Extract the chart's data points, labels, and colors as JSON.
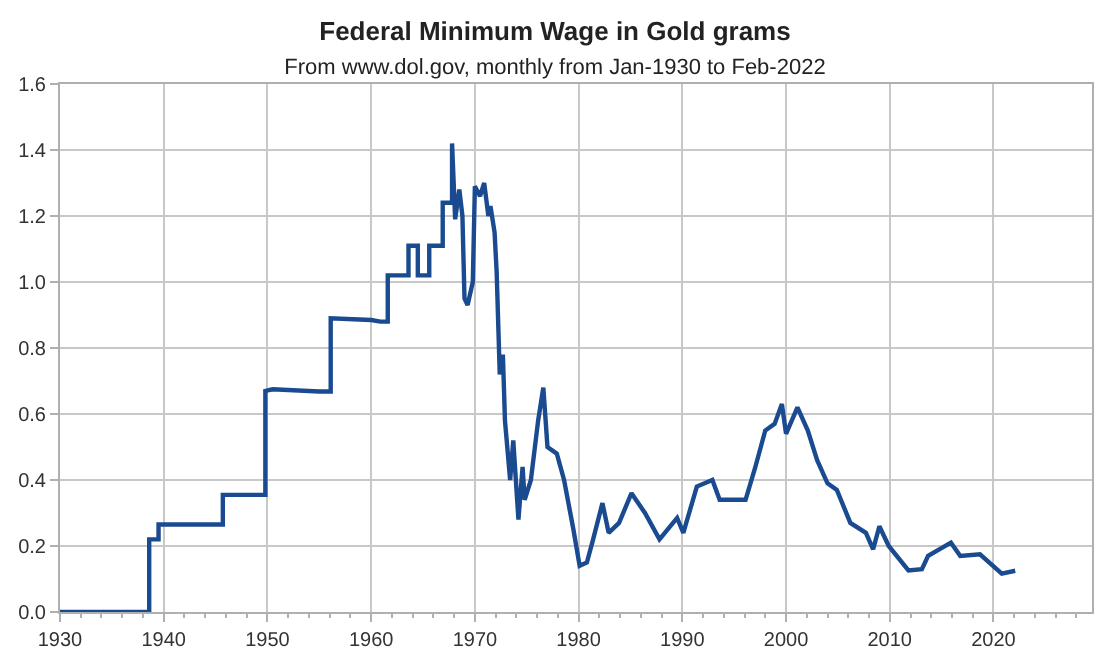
{
  "chart_data": {
    "type": "line",
    "title": "Federal Minimum Wage in Gold grams",
    "subtitle": "From www.dol.gov, monthly from Jan-1930 to Feb-2022",
    "xlim": [
      1930,
      2029.5
    ],
    "xticks": [
      1930,
      1940,
      1950,
      1960,
      1970,
      1980,
      1990,
      2000,
      2010,
      2020
    ],
    "ylim": [
      0,
      1.6
    ],
    "yticks": [
      {
        "value": 0,
        "label": "0.0"
      },
      {
        "value": 0.2,
        "label": "0.2"
      },
      {
        "value": 0.4,
        "label": "0.4"
      },
      {
        "value": 0.6,
        "label": "0.6"
      },
      {
        "value": 0.8,
        "label": "0.8"
      },
      {
        "value": 1.0,
        "label": "1.0"
      },
      {
        "value": 1.2,
        "label": "1.2"
      },
      {
        "value": 1.4,
        "label": "1.4"
      },
      {
        "value": 1.6,
        "label": "1.6"
      }
    ],
    "grid": true,
    "marker": "none",
    "line_style": "solid",
    "series": [
      {
        "color": "#1a4a8f",
        "x": [
          1930,
          1938.6,
          1938.6,
          1939.5,
          1939.5,
          1945.7,
          1945.7,
          1949.8,
          1949.8,
          1950.5,
          1955,
          1956.1,
          1956.1,
          1960,
          1960.9,
          1961.6,
          1961.6,
          1963.6,
          1963.6,
          1964.5,
          1964.5,
          1965.6,
          1965.6,
          1966.9,
          1966.9,
          1967.8,
          1967.8,
          1968.1,
          1968.5,
          1968.8,
          1969.0,
          1969.3,
          1969.8,
          1970.0,
          1970.5,
          1970.9,
          1971.3,
          1971.5,
          1971.9,
          1972.1,
          1972.4,
          1972.7,
          1972.9,
          1973.4,
          1973.7,
          1974.2,
          1974.6,
          1974.8,
          1975.4,
          1976.1,
          1976.6,
          1977.0,
          1977.9,
          1978.6,
          1979.5,
          1980.1,
          1980.8,
          1981.4,
          1982.3,
          1982.9,
          1983.9,
          1985.1,
          1986.4,
          1987.8,
          1989.5,
          1990.1,
          1991.4,
          1992.9,
          1993.6,
          1996.1,
          1997.0,
          1998.0,
          1998.9,
          1999.6,
          2000.0,
          2001.1,
          2002.1,
          2003.0,
          2004.0,
          2004.9,
          2006.2,
          2007.7,
          2008.4,
          2009.0,
          2009.9,
          2011.8,
          2013.1,
          2013.7,
          2015.9,
          2016.8,
          2018.7,
          2020.8,
          2022.1
        ],
        "values": [
          0,
          0,
          0.22,
          0.22,
          0.265,
          0.265,
          0.355,
          0.355,
          0.67,
          0.675,
          0.668,
          0.668,
          0.89,
          0.885,
          0.88,
          0.88,
          1.02,
          1.02,
          1.11,
          1.11,
          1.02,
          1.02,
          1.11,
          1.11,
          1.24,
          1.24,
          1.42,
          1.19,
          1.28,
          1.2,
          0.95,
          0.93,
          1.0,
          1.29,
          1.26,
          1.3,
          1.2,
          1.23,
          1.15,
          1.03,
          0.72,
          0.78,
          0.58,
          0.4,
          0.52,
          0.28,
          0.44,
          0.34,
          0.4,
          0.58,
          0.68,
          0.5,
          0.48,
          0.4,
          0.25,
          0.14,
          0.15,
          0.22,
          0.33,
          0.24,
          0.27,
          0.36,
          0.3,
          0.22,
          0.285,
          0.24,
          0.38,
          0.4,
          0.34,
          0.34,
          0.435,
          0.55,
          0.57,
          0.63,
          0.54,
          0.62,
          0.55,
          0.46,
          0.39,
          0.37,
          0.27,
          0.24,
          0.19,
          0.26,
          0.2,
          0.126,
          0.13,
          0.17,
          0.21,
          0.17,
          0.175,
          0.116,
          0.125
        ]
      }
    ]
  }
}
